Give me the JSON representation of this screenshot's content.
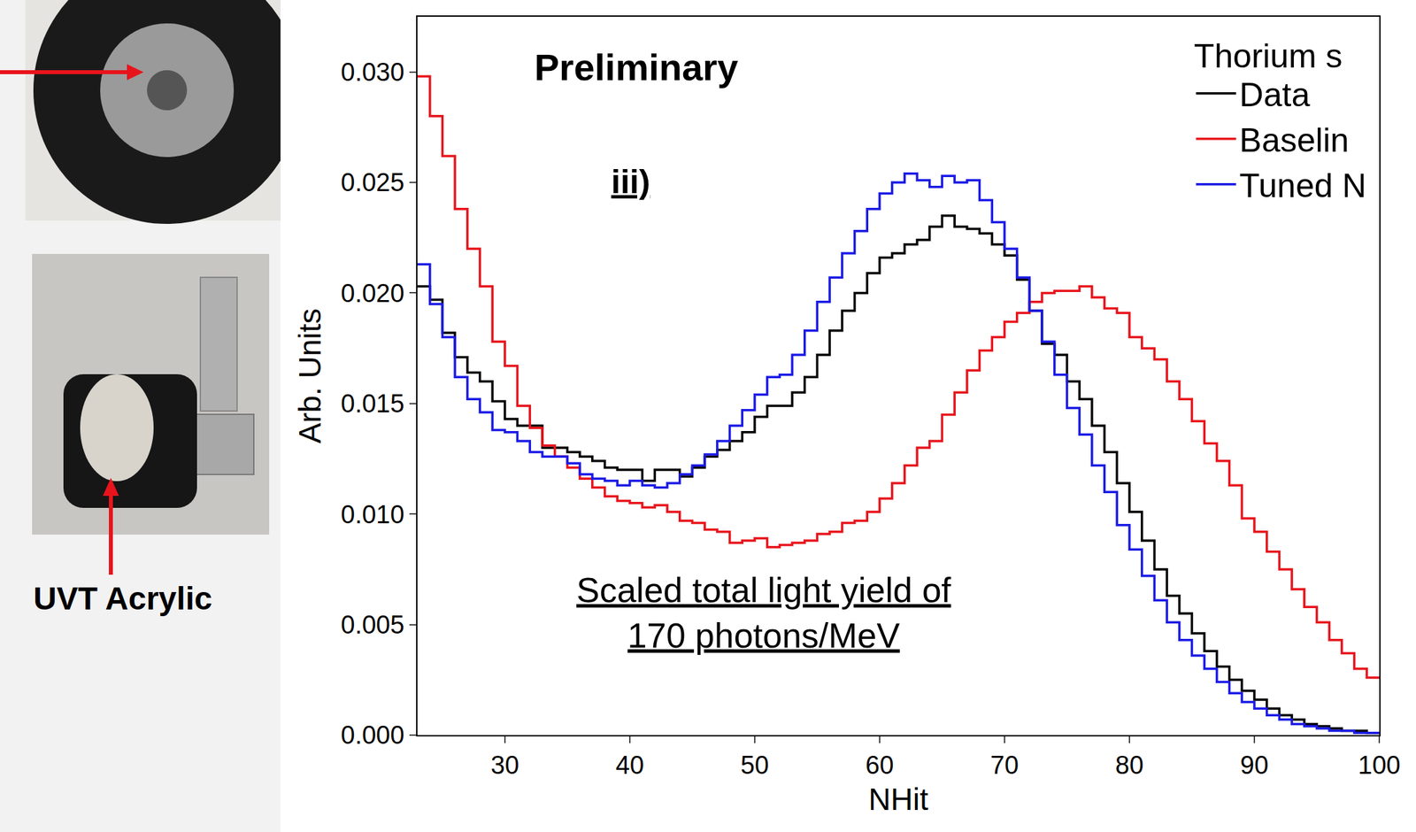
{
  "chart_data": {
    "type": "step",
    "x_label": "NHit",
    "y_label": "Arb. Units",
    "legend_title": "Thorium s",
    "legend": "upper right",
    "grid": false,
    "annotations": [
      "Preliminary",
      "iii)",
      "Scaled total light yield of 170 photons/MeV"
    ],
    "xlim": [
      23,
      100
    ],
    "xticks": [
      30,
      40,
      50,
      60,
      70,
      80,
      90,
      100
    ],
    "ylim": [
      0,
      0.0325
    ],
    "yticks": [
      {
        "value": 0,
        "label": "0.000"
      },
      {
        "value": 0.005,
        "label": "0.005"
      },
      {
        "value": 0.01,
        "label": "0.010"
      },
      {
        "value": 0.015,
        "label": "0.015"
      },
      {
        "value": 0.02,
        "label": "0.020"
      },
      {
        "value": 0.025,
        "label": "0.025"
      },
      {
        "value": 0.03,
        "label": "0.030"
      }
    ],
    "bins": [
      23,
      24,
      25,
      26,
      27,
      28,
      29,
      30,
      31,
      32,
      33,
      34,
      35,
      36,
      37,
      38,
      39,
      40,
      41,
      42,
      43,
      44,
      45,
      46,
      47,
      48,
      49,
      50,
      51,
      52,
      53,
      54,
      55,
      56,
      57,
      58,
      59,
      60,
      61,
      62,
      63,
      64,
      65,
      66,
      67,
      68,
      69,
      70,
      71,
      72,
      73,
      74,
      75,
      76,
      77,
      78,
      79,
      80,
      81,
      82,
      83,
      84,
      85,
      86,
      87,
      88,
      89,
      90,
      91,
      92,
      93,
      94,
      95,
      96,
      97,
      98,
      99,
      100
    ],
    "series": [
      {
        "name": "Data",
        "color": "#000000",
        "values": [
          0.0203,
          0.0197,
          0.0182,
          0.0171,
          0.0164,
          0.016,
          0.0151,
          0.0143,
          0.014,
          0.014,
          0.013,
          0.013,
          0.0128,
          0.0126,
          0.0124,
          0.0121,
          0.012,
          0.012,
          0.0115,
          0.012,
          0.012,
          0.0117,
          0.0121,
          0.0126,
          0.0129,
          0.0133,
          0.0137,
          0.0144,
          0.0149,
          0.0149,
          0.0155,
          0.0162,
          0.0172,
          0.0183,
          0.0192,
          0.02,
          0.0209,
          0.0216,
          0.0218,
          0.0222,
          0.0224,
          0.023,
          0.0235,
          0.023,
          0.0229,
          0.0227,
          0.0222,
          0.0217,
          0.0206,
          0.0192,
          0.0177,
          0.0172,
          0.016,
          0.0152,
          0.014,
          0.0128,
          0.0114,
          0.0101,
          0.0088,
          0.0075,
          0.0063,
          0.0055,
          0.0046,
          0.0038,
          0.0031,
          0.0025,
          0.002,
          0.0016,
          0.0012,
          0.0009,
          0.0007,
          0.0005,
          0.0004,
          0.0003,
          0.0002,
          0.0002,
          0.0001
        ]
      },
      {
        "name": "Baselin",
        "color": "#e8141c",
        "values": [
          0.0298,
          0.028,
          0.0262,
          0.0238,
          0.022,
          0.0203,
          0.0178,
          0.0167,
          0.0149,
          0.0139,
          0.0131,
          0.0126,
          0.0121,
          0.0116,
          0.0112,
          0.0108,
          0.0106,
          0.0105,
          0.0103,
          0.0104,
          0.0101,
          0.0097,
          0.0096,
          0.0093,
          0.0092,
          0.0087,
          0.0088,
          0.0089,
          0.0085,
          0.0086,
          0.0087,
          0.0088,
          0.0091,
          0.0092,
          0.0096,
          0.0097,
          0.0101,
          0.0107,
          0.0114,
          0.0122,
          0.013,
          0.0133,
          0.0145,
          0.0155,
          0.0165,
          0.0174,
          0.018,
          0.0187,
          0.0191,
          0.0196,
          0.02,
          0.0201,
          0.0201,
          0.0203,
          0.0198,
          0.0193,
          0.0191,
          0.018,
          0.0175,
          0.017,
          0.016,
          0.0152,
          0.0142,
          0.0132,
          0.0124,
          0.0113,
          0.0098,
          0.0092,
          0.0083,
          0.0075,
          0.0066,
          0.0058,
          0.0051,
          0.0043,
          0.0037,
          0.003,
          0.0026
        ]
      },
      {
        "name": "Tuned N",
        "color": "#1a1ae6",
        "values": [
          0.0213,
          0.0195,
          0.018,
          0.0162,
          0.0152,
          0.0146,
          0.0138,
          0.0137,
          0.0133,
          0.0128,
          0.0126,
          0.0126,
          0.0123,
          0.0118,
          0.0116,
          0.0115,
          0.0113,
          0.0115,
          0.0113,
          0.0112,
          0.0114,
          0.0118,
          0.0122,
          0.0127,
          0.0133,
          0.014,
          0.0147,
          0.0154,
          0.0162,
          0.0163,
          0.0172,
          0.0183,
          0.0196,
          0.0207,
          0.0218,
          0.0228,
          0.0238,
          0.0245,
          0.025,
          0.0254,
          0.0251,
          0.0248,
          0.0253,
          0.025,
          0.0251,
          0.0242,
          0.0232,
          0.022,
          0.0207,
          0.0192,
          0.0178,
          0.0163,
          0.0148,
          0.0136,
          0.0122,
          0.011,
          0.0095,
          0.0084,
          0.0072,
          0.0061,
          0.0051,
          0.0043,
          0.0036,
          0.003,
          0.0024,
          0.0019,
          0.0015,
          0.0012,
          0.0009,
          0.0007,
          0.0005,
          0.0004,
          0.0003,
          0.0002,
          0.0002,
          0.0001,
          0.0001
        ]
      }
    ]
  },
  "side_panel": {
    "label": "UVT Acrylic"
  }
}
